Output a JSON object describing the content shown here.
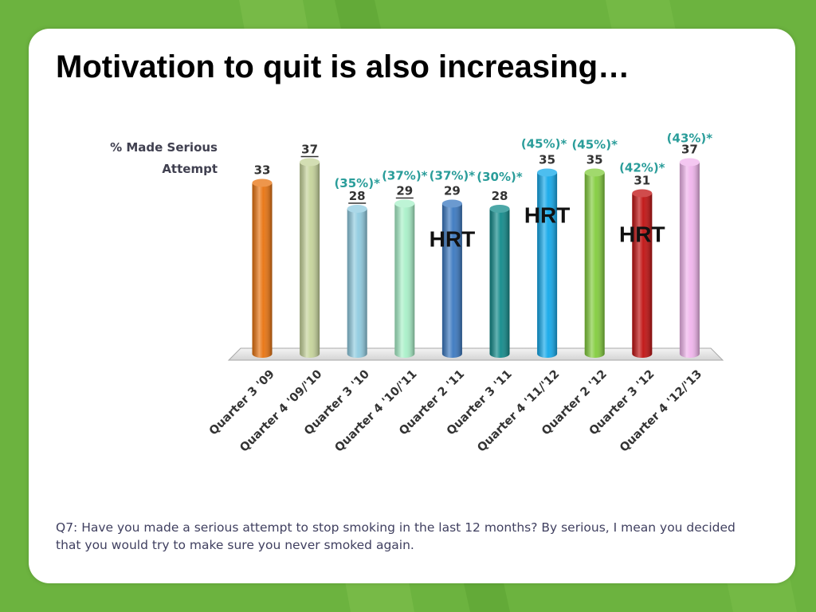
{
  "slide": {
    "title": "Motivation to quit is also increasing…",
    "footnote": "Q7: Have you made a serious attempt to stop smoking in the last 12 months?  By serious, I mean you decided that you would try to make sure you never smoked again."
  },
  "colors": {
    "background": "#6cb33f",
    "panel": "#ffffff",
    "annotation": "#2a9d9a",
    "hrt": "#111111"
  },
  "chart_data": {
    "type": "bar",
    "ylabel_lines": [
      "% Made Serious",
      "Attempt"
    ],
    "categories": [
      "Quarter 3 '09",
      "Quarter 4 '09/'10",
      "Quarter 3 '10",
      "Quarter 4 '10/'11",
      "Quarter 2 '11",
      "Quarter 3 '11",
      "Quarter 4 '11/'12",
      "Quarter 2 '12",
      "Quarter 3 '12",
      "Quarter 4 '12/'13"
    ],
    "values": [
      33,
      37,
      28,
      29,
      29,
      28,
      35,
      35,
      31,
      37
    ],
    "value_labels": [
      "33",
      "37",
      "28",
      "29",
      "29",
      "28",
      "35",
      "35",
      "31",
      "37"
    ],
    "underlined_value_indices": [
      1,
      2,
      3
    ],
    "bar_colors": [
      "#e8730f",
      "#c5d39a",
      "#8fcbe0",
      "#a8f0c8",
      "#3a78c0",
      "#118a8a",
      "#12a8ea",
      "#82cc3c",
      "#c01010",
      "#f0b4ec"
    ],
    "annotations": [
      "",
      "",
      "(35%)*",
      "(37%)*",
      "(37%)*",
      "(30%)*",
      "(45%)*",
      "(45%)*",
      "(42%)*",
      "(43%)*"
    ],
    "hrt_label": "HRT",
    "hrt_indices": [
      4,
      6,
      8
    ],
    "ylim": [
      0,
      40
    ],
    "grid": false
  }
}
